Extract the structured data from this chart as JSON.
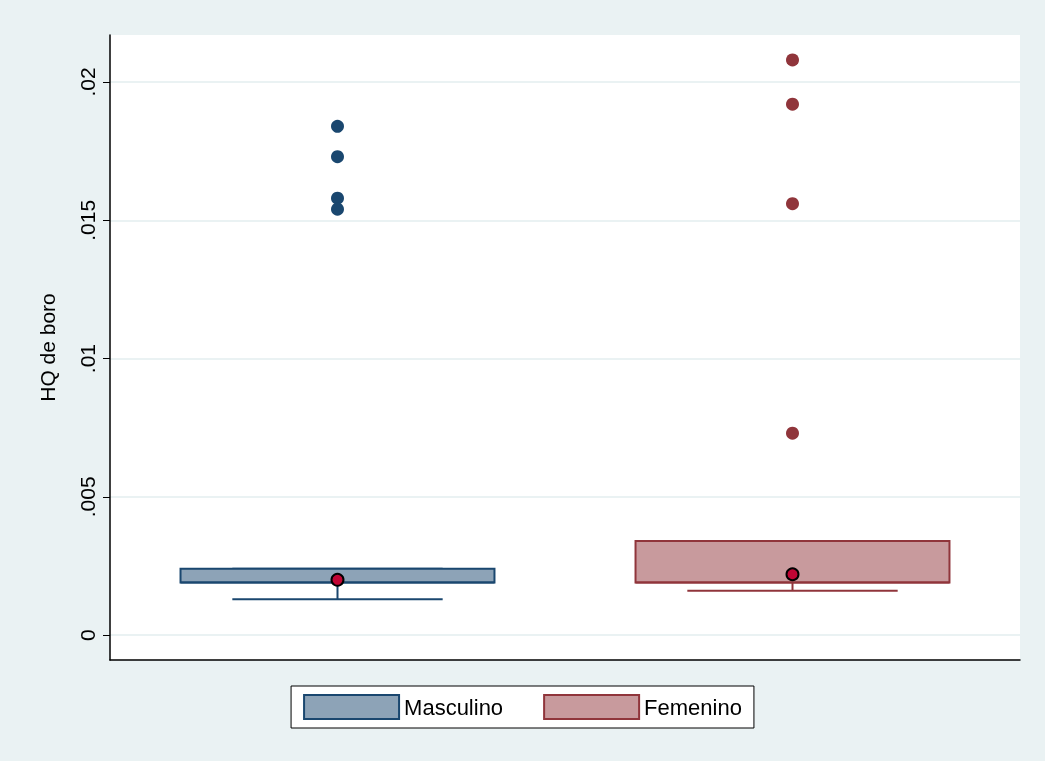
{
  "chart_data": {
    "type": "box",
    "ylabel": "HQ de boro",
    "categories": [
      null,
      null
    ],
    "series": [
      {
        "name": "Masculino",
        "color": "#1a476f",
        "boxes": [
          {
            "low": 0.0013,
            "q1": 0.0019,
            "median": 0.0019,
            "q3": 0.0024,
            "high": 0.0024,
            "mean": 0.002,
            "outliers": [
              0.0184,
              0.0173,
              0.0158,
              0.0154
            ]
          },
          null
        ]
      },
      {
        "name": "Femenino",
        "color": "#90353b",
        "boxes": [
          null,
          {
            "low": 0.0016,
            "q1": 0.0019,
            "median": 0.0019,
            "q3": 0.0034,
            "high": 0.0034,
            "mean": 0.0022,
            "outliers": [
              0.0208,
              0.0192,
              0.0156,
              0.0073
            ]
          }
        ]
      }
    ],
    "ylim": [
      -0.0009,
      0.0217
    ],
    "yticks": [
      0,
      {
        "value": 0.005,
        "label": ".005"
      },
      {
        "value": 0.01,
        "label": ".01"
      },
      {
        "value": 0.015,
        "label": ".015"
      },
      {
        "value": 0.02,
        "label": ".02"
      }
    ],
    "grid": "y",
    "legend": "bottom",
    "marker": "circle"
  }
}
